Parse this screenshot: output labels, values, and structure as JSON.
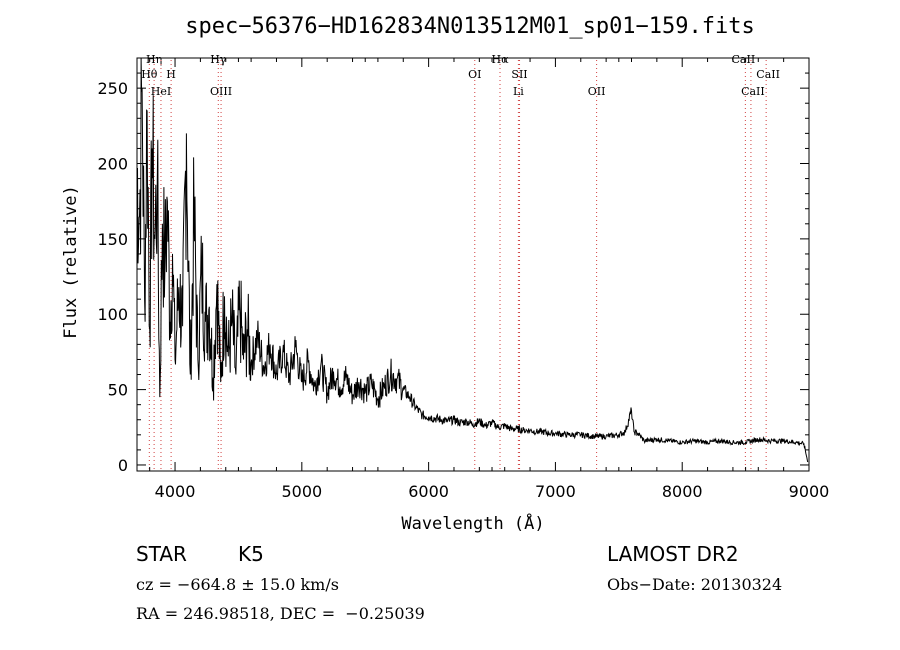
{
  "chart_data": {
    "type": "line",
    "title": "spec−56376−HD162834N013512M01_sp01−159.fits",
    "xlabel": "Wavelength (Å)",
    "ylabel": "Flux (relative)",
    "xlim": [
      3700,
      9000
    ],
    "ylim": [
      -4,
      270
    ],
    "xticks": [
      4000,
      5000,
      6000,
      7000,
      8000,
      9000
    ],
    "yticks": [
      0,
      50,
      100,
      150,
      200,
      250
    ],
    "grid": false,
    "series": [
      {
        "color": "#000000",
        "x": [
          3700,
          3720,
          3740,
          3760,
          3780,
          3800,
          3820,
          3840,
          3860,
          3880,
          3900,
          3920,
          3940,
          3960,
          3980,
          4000,
          4030,
          4060,
          4090,
          4120,
          4150,
          4180,
          4210,
          4240,
          4270,
          4300,
          4330,
          4360,
          4390,
          4420,
          4450,
          4480,
          4510,
          4540,
          4570,
          4600,
          4650,
          4700,
          4750,
          4800,
          4850,
          4900,
          4950,
          5000,
          5050,
          5100,
          5150,
          5200,
          5250,
          5300,
          5350,
          5400,
          5450,
          5500,
          5550,
          5600,
          5650,
          5700,
          5750,
          5800,
          5850,
          5900,
          5950,
          6000,
          6050,
          6100,
          6150,
          6200,
          6250,
          6300,
          6350,
          6400,
          6450,
          6500,
          6550,
          6600,
          6650,
          6700,
          6750,
          6800,
          6850,
          6900,
          6950,
          7000,
          7100,
          7200,
          7300,
          7400,
          7500,
          7550,
          7600,
          7620,
          7650,
          7700,
          7800,
          7900,
          8000,
          8100,
          8200,
          8300,
          8400,
          8500,
          8600,
          8700,
          8800,
          8900,
          8960,
          8990
        ],
        "y": [
          195,
          165,
          250,
          110,
          235,
          90,
          210,
          150,
          190,
          45,
          160,
          130,
          175,
          95,
          140,
          70,
          118,
          92,
          220,
          60,
          165,
          70,
          128,
          95,
          105,
          58,
          120,
          55,
          112,
          72,
          95,
          60,
          105,
          70,
          90,
          68,
          85,
          65,
          80,
          60,
          75,
          58,
          78,
          55,
          68,
          52,
          66,
          48,
          62,
          52,
          58,
          46,
          55,
          48,
          54,
          44,
          52,
          60,
          57,
          50,
          45,
          38,
          33,
          32,
          31,
          30,
          29,
          30,
          28,
          29,
          27,
          29,
          26,
          28,
          25,
          26,
          24,
          24,
          23,
          23,
          22,
          22,
          21,
          21,
          20,
          20,
          19,
          19,
          20,
          22,
          36,
          22,
          21,
          16,
          17,
          16,
          15,
          16,
          15,
          16,
          15,
          15,
          17,
          16,
          16,
          15,
          14,
          2
        ]
      }
    ],
    "lines": [
      {
        "label": "Hη",
        "x": 3835
      },
      {
        "label": "Hθ",
        "x": 3797
      },
      {
        "label": "H",
        "x": 3969
      },
      {
        "label": "HeI",
        "x": 3889
      },
      {
        "label": "Hγ",
        "x": 4341
      },
      {
        "label": "OIII",
        "x": 4363
      },
      {
        "label": "OI",
        "x": 6364
      },
      {
        "label": "Hα",
        "x": 6563
      },
      {
        "label": "SII",
        "x": 6717
      },
      {
        "label": "Li",
        "x": 6708
      },
      {
        "label": "OII",
        "x": 7325
      },
      {
        "label": "CaII",
        "x": 8498
      },
      {
        "label": "CaII",
        "x": 8542
      },
      {
        "label": "CaII",
        "x": 8662
      }
    ]
  },
  "info": {
    "object_type": "STAR",
    "subclass": "K5",
    "survey": "LAMOST DR2",
    "redshift": "cz = −664.8 ± 15.0 km/s",
    "obs_date": "Obs−Date: 20130324",
    "coords": "RA = 246.98518, DEC =  −0.25039"
  }
}
